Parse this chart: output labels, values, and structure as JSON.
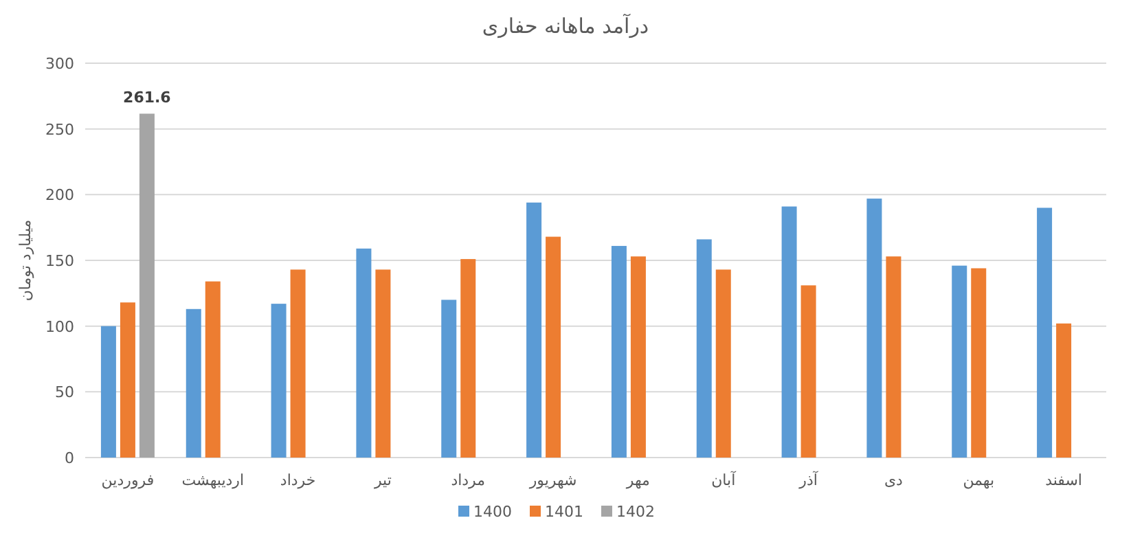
{
  "chart_data": {
    "type": "bar",
    "title": "درآمد ماهانه حفاری",
    "ylabel": "میلیارد تومان",
    "categories": [
      "فروردین",
      "اردیبهشت",
      "خرداد",
      "تیر",
      "مرداد",
      "شهریور",
      "مهر",
      "آبان",
      "آذر",
      "دی",
      "بهمن",
      "اسفند"
    ],
    "series": [
      {
        "name": "1400",
        "color": "#5b9bd5",
        "values": [
          100,
          113,
          117,
          159,
          120,
          194,
          161,
          166,
          191,
          197,
          146,
          190
        ]
      },
      {
        "name": "1401",
        "color": "#ed7d31",
        "values": [
          118,
          134,
          143,
          143,
          151,
          168,
          153,
          143,
          131,
          153,
          144,
          102
        ]
      },
      {
        "name": "1402",
        "color": "#a5a5a5",
        "values": [
          261.6,
          null,
          null,
          null,
          null,
          null,
          null,
          null,
          null,
          null,
          null,
          null
        ],
        "value_labels": [
          "261.6",
          null,
          null,
          null,
          null,
          null,
          null,
          null,
          null,
          null,
          null,
          null
        ]
      }
    ],
    "ylim": [
      0,
      300
    ],
    "yticks": [
      0,
      50,
      100,
      150,
      200,
      250,
      300
    ],
    "grid": "y",
    "legend": "bottom"
  }
}
